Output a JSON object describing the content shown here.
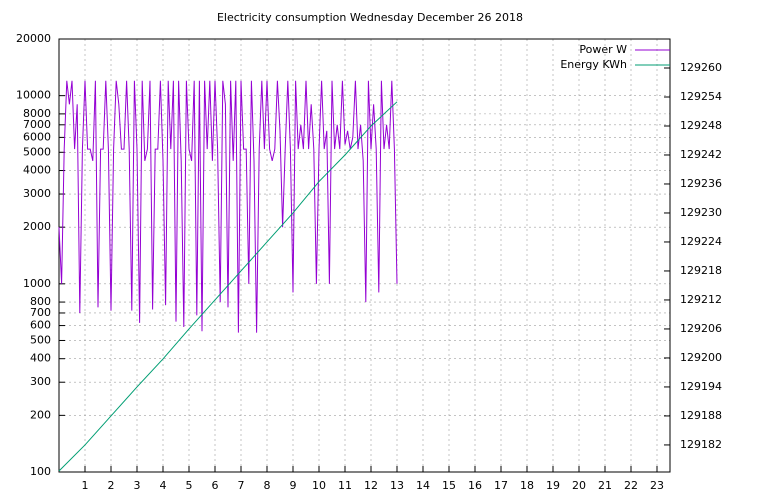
{
  "chart_data": {
    "type": "line",
    "title": "Electricity consumption Wednesday December 26 2018",
    "xlim": [
      0,
      23.5
    ],
    "xticks": [
      1,
      2,
      3,
      4,
      5,
      6,
      7,
      8,
      9,
      10,
      11,
      12,
      13,
      14,
      15,
      16,
      17,
      18,
      19,
      20,
      21,
      22,
      23
    ],
    "ylim": [
      100,
      20000
    ],
    "ylog": true,
    "yticks": [
      100,
      200,
      300,
      400,
      500,
      600,
      700,
      800,
      1000,
      2000,
      3000,
      4000,
      5000,
      6000,
      7000,
      8000,
      10000,
      20000
    ],
    "y2lim": [
      129176.4,
      129266
    ],
    "y2ticks": [
      129182,
      129188,
      129194,
      129200,
      129206,
      129212,
      129218,
      129224,
      129230,
      129236,
      129242,
      129248,
      129254,
      129260
    ],
    "grid": true,
    "legend": "top-right",
    "series": [
      {
        "name": "Power W",
        "color": "#9400d3",
        "x": [
          0,
          0.1,
          0.2,
          0.3,
          0.4,
          0.5,
          0.6,
          0.7,
          0.8,
          0.9,
          1,
          1.1,
          1.2,
          1.3,
          1.4,
          1.5,
          1.6,
          1.7,
          1.8,
          1.9,
          2,
          2.1,
          2.2,
          2.3,
          2.4,
          2.5,
          2.6,
          2.7,
          2.8,
          2.9,
          3,
          3.1,
          3.2,
          3.3,
          3.4,
          3.5,
          3.6,
          3.7,
          3.8,
          3.9,
          4,
          4.1,
          4.2,
          4.3,
          4.4,
          4.5,
          4.6,
          4.7,
          4.8,
          4.9,
          5,
          5.1,
          5.2,
          5.3,
          5.4,
          5.5,
          5.6,
          5.7,
          5.8,
          5.9,
          6,
          6.1,
          6.2,
          6.3,
          6.4,
          6.5,
          6.6,
          6.7,
          6.8,
          6.9,
          7,
          7.1,
          7.2,
          7.3,
          7.4,
          7.5,
          7.6,
          7.7,
          7.8,
          7.9,
          8,
          8.1,
          8.2,
          8.3,
          8.4,
          8.5,
          8.6,
          8.7,
          8.8,
          8.9,
          9,
          9.1,
          9.2,
          9.3,
          9.4,
          9.5,
          9.6,
          9.7,
          9.8,
          9.9,
          10,
          10.1,
          10.2,
          10.3,
          10.4,
          10.5,
          10.6,
          10.7,
          10.8,
          10.9,
          11,
          11.1,
          11.2,
          11.3,
          11.4,
          11.5,
          11.6,
          11.7,
          11.8,
          11.9,
          12,
          12.1,
          12.2,
          12.3,
          12.4,
          12.5,
          12.6,
          12.7,
          12.8,
          12.9,
          13
        ],
        "values": [
          2000,
          1000,
          5200,
          12000,
          9000,
          12000,
          5200,
          9000,
          700,
          5200,
          12000,
          5200,
          5200,
          4500,
          12000,
          750,
          5200,
          5200,
          12000,
          5200,
          720,
          5200,
          12000,
          9000,
          5200,
          5200,
          12000,
          5200,
          720,
          12000,
          5200,
          620,
          12000,
          4500,
          5200,
          12000,
          730,
          5200,
          5200,
          12000,
          4500,
          770,
          12000,
          5200,
          12000,
          630,
          12000,
          4500,
          590,
          12000,
          5200,
          4500,
          12000,
          680,
          12000,
          560,
          12000,
          5200,
          12000,
          4500,
          12000,
          5200,
          800,
          12000,
          9000,
          750,
          12000,
          4500,
          12000,
          550,
          12000,
          5200,
          5200,
          1000,
          12000,
          4500,
          550,
          5200,
          12000,
          5200,
          12000,
          5200,
          4500,
          5200,
          12000,
          6500,
          2000,
          5200,
          12000,
          5200,
          900,
          12000,
          5200,
          7000,
          5200,
          12000,
          5200,
          9000,
          5200,
          1000,
          5200,
          12000,
          5200,
          6500,
          1000,
          12000,
          5200,
          7000,
          5200,
          12000,
          5500,
          6500,
          5200,
          6000,
          12000,
          5200,
          7000,
          4500,
          800,
          12000,
          5200,
          9000,
          5200,
          900,
          12000,
          5200,
          7000,
          5200,
          12000,
          5200,
          1000
        ]
      },
      {
        "name": "Energy KWh",
        "color": "#009e73",
        "axis": "y2",
        "x": [
          0,
          1,
          2,
          3,
          4,
          5,
          6,
          7,
          8,
          9,
          10,
          11,
          12,
          13
        ],
        "values": [
          129176.6,
          129182,
          129188,
          129194,
          129199.8,
          129206,
          129212,
          129218,
          129224,
          129230,
          129236.5,
          129242,
          129248,
          129253
        ]
      }
    ]
  }
}
